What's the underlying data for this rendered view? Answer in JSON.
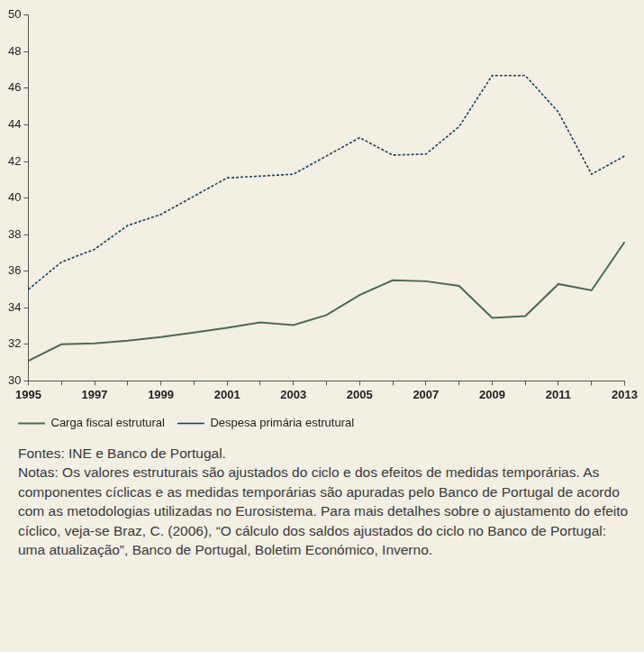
{
  "chart_data": {
    "type": "line",
    "categories": [
      "1995",
      null,
      "1997",
      null,
      "1999",
      null,
      "2001",
      null,
      "2003",
      null,
      "2005",
      null,
      "2007",
      null,
      "2009",
      null,
      "2011",
      null,
      "2013"
    ],
    "series": [
      {
        "name": "Carga fiscal estrutural",
        "color": "#4b6a52",
        "line_style": "solid",
        "values": [
          31.1,
          32.0,
          32.05,
          32.2,
          32.4,
          32.65,
          32.9,
          33.2,
          33.05,
          33.6,
          34.7,
          35.5,
          35.45,
          35.2,
          33.45,
          33.55,
          35.3,
          34.95,
          37.6
        ]
      },
      {
        "name": "Despesa primária estrutural",
        "color": "#1d3f5e",
        "line_style": "dotted",
        "values": [
          35.0,
          36.5,
          37.2,
          38.5,
          39.1,
          40.1,
          41.1,
          41.2,
          41.3,
          42.3,
          43.3,
          42.35,
          42.4,
          43.9,
          46.7,
          46.7,
          44.7,
          41.3,
          42.3
        ]
      }
    ],
    "ylim": [
      30,
      50
    ],
    "yticks": [
      30,
      32,
      34,
      36,
      38,
      40,
      42,
      44,
      46,
      48,
      50
    ],
    "grid": false,
    "legend": "bottom-left",
    "source": "Fontes: INE e Banco de Portugal.",
    "notes": "Notas: Os valores estruturais são ajustados do ciclo e dos efeitos de medidas temporárias. As componentes cíclicas e as medidas temporárias são apuradas pelo Banco de Portugal de acordo com as metodologias utilizadas no Eurosistema. Para mais detalhes sobre o ajustamento do efeito cíclico, veja-se Braz, C. (2006), “O cálculo dos saldos ajustados do ciclo no Banco de Portugal: uma atualização”, Banco de Portugal, Boletim Económico, Inverno."
  }
}
